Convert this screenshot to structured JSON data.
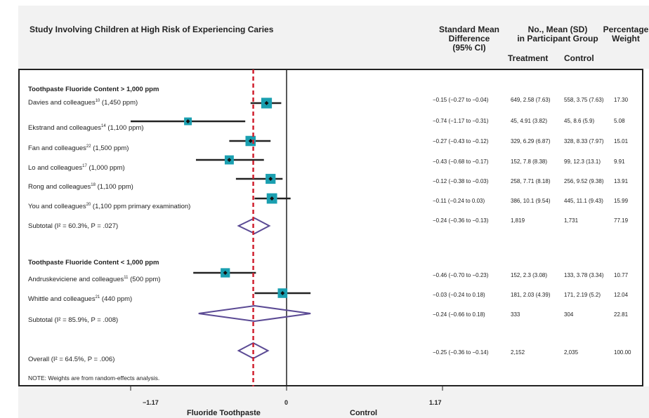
{
  "header": {
    "title": "Study Involving Children at High Risk of Experiencing Caries",
    "col_smd": "Standard Mean\nDifference\n(95% CI)",
    "col_group": "No., Mean (SD)\nin Participant Group",
    "col_weight": "Percentage\nWeight",
    "col_treatment": "Treatment",
    "col_control": "Control"
  },
  "groups": [
    {
      "title": "Toothpaste Fluoride Content > 1,000 ppm"
    },
    {
      "title": "Toothpaste Fluoride Content < 1,000 ppm"
    }
  ],
  "rows": [
    {
      "label": "Davies and colleagues",
      "ref": "10",
      "suffix": " (1,450 ppm)",
      "ci": "−0.15 (−0.27 to −0.04)",
      "treatment": "649, 2.58 (7.63)",
      "control": "558, 3.75 (7.63)",
      "weight": "17.30"
    },
    {
      "label": "Ekstrand and colleagues",
      "ref": "14",
      "suffix": " (1,100 ppm)",
      "ci": "−0.74 (−1.17 to −0.31)",
      "treatment": "45, 4.91 (3.82)",
      "control": "45, 8.6 (5.9)",
      "weight": "5.08"
    },
    {
      "label": "Fan and colleagues",
      "ref": "22",
      "suffix": " (1,500 ppm)",
      "ci": "−0.27 (−0.43 to −0.12)",
      "treatment": "329, 6.29 (6.87)",
      "control": "328, 8.33 (7.97)",
      "weight": "15.01"
    },
    {
      "label": "Lo and colleagues",
      "ref": "17",
      "suffix": " (1,000 ppm)",
      "ci": "−0.43 (−0.68 to −0.17)",
      "treatment": "152, 7.8 (8.38)",
      "control": "99, 12.3 (13.1)",
      "weight": "9.91"
    },
    {
      "label": "Rong and colleagues",
      "ref": "18",
      "suffix": " (1,100 ppm)",
      "ci": "−0.12 (−0.38 to −0.03)",
      "treatment": "258, 7.71 (8.18)",
      "control": "256, 9.52 (9.38)",
      "weight": "13.91"
    },
    {
      "label": "You and colleagues",
      "ref": "20",
      "suffix": " (1,100 ppm primary examination)",
      "ci": "−0.11 (−0.24 to 0.03)",
      "treatment": "386, 10.1 (9.54)",
      "control": "445, 11.1 (9.43)",
      "weight": "15.99"
    },
    {
      "label": "Subtotal (I² = 60.3%, P = .027)",
      "ref": "",
      "suffix": "",
      "ci": "−0.24 (−0.36 to −0.13)",
      "treatment": "1,819",
      "control": "1,731",
      "weight": "77.19"
    },
    {
      "label": "Andruskeviciene and colleagues",
      "ref": "11",
      "suffix": " (500 ppm)",
      "ci": "−0.46 (−0.70 to −0.23)",
      "treatment": "152, 2.3 (3.08)",
      "control": "133, 3.78 (3.34)",
      "weight": "10.77"
    },
    {
      "label": "Whittle and colleagues",
      "ref": "21",
      "suffix": " (440 ppm)",
      "ci": "−0.03 (−0.24 to 0.18)",
      "treatment": "181, 2.03 (4.39)",
      "control": "171, 2.19 (5.2)",
      "weight": "12.04"
    },
    {
      "label": "Subtotal (I² = 85.9%, P = .008)",
      "ref": "",
      "suffix": "",
      "ci": "−0.24 (−0.66 to 0.18)",
      "treatment": "333",
      "control": "304",
      "weight": "22.81"
    },
    {
      "label": "Overall (I² = 64.5%, P = .006)",
      "ref": "",
      "suffix": "",
      "ci": "−0.25 (−0.36 to −0.14)",
      "treatment": "2,152",
      "control": "2,035",
      "weight": "100.00"
    }
  ],
  "note": "NOTE: Weights are from random-effects analysis.",
  "axis": {
    "ticks": [
      "−1.17",
      "0",
      "1.17"
    ],
    "left_label": "Fluoride Toothpaste",
    "right_label": "Control"
  },
  "colors": {
    "marker_square": "#1a9fb0",
    "diamond": "#5b4a94",
    "overall_line": "#d0202f",
    "ci_line": "#222222"
  },
  "chart_data": {
    "type": "forest",
    "xlim": [
      -1.17,
      1.17
    ],
    "xticks": [
      -1.17,
      0,
      1.17
    ],
    "reference_line": -0.25,
    "studies": [
      {
        "name": "Davies and colleagues (1,450 ppm)",
        "est": -0.15,
        "lo": -0.27,
        "hi": -0.04,
        "weight": 17.3
      },
      {
        "name": "Ekstrand and colleagues (1,100 ppm)",
        "est": -0.74,
        "lo": -1.17,
        "hi": -0.31,
        "weight": 5.08
      },
      {
        "name": "Fan and colleagues (1,500 ppm)",
        "est": -0.27,
        "lo": -0.43,
        "hi": -0.12,
        "weight": 15.01
      },
      {
        "name": "Lo and colleagues (1,000 ppm)",
        "est": -0.43,
        "lo": -0.68,
        "hi": -0.17,
        "weight": 9.91
      },
      {
        "name": "Rong and colleagues (1,100 ppm)",
        "est": -0.12,
        "lo": -0.38,
        "hi": -0.03,
        "weight": 13.91
      },
      {
        "name": "You and colleagues (1,100 ppm primary examination)",
        "est": -0.11,
        "lo": -0.24,
        "hi": 0.03,
        "weight": 15.99
      },
      {
        "name": "Subtotal > 1,000 ppm",
        "est": -0.24,
        "lo": -0.36,
        "hi": -0.13,
        "weight": 77.19,
        "summary": true
      },
      {
        "name": "Andruskeviciene and colleagues (500 ppm)",
        "est": -0.46,
        "lo": -0.7,
        "hi": -0.23,
        "weight": 10.77
      },
      {
        "name": "Whittle and colleagues (440 ppm)",
        "est": -0.03,
        "lo": -0.24,
        "hi": 0.18,
        "weight": 12.04
      },
      {
        "name": "Subtotal < 1,000 ppm",
        "est": -0.24,
        "lo": -0.66,
        "hi": 0.18,
        "weight": 22.81,
        "summary": true
      },
      {
        "name": "Overall",
        "est": -0.25,
        "lo": -0.36,
        "hi": -0.14,
        "weight": 100.0,
        "summary": true
      }
    ]
  }
}
